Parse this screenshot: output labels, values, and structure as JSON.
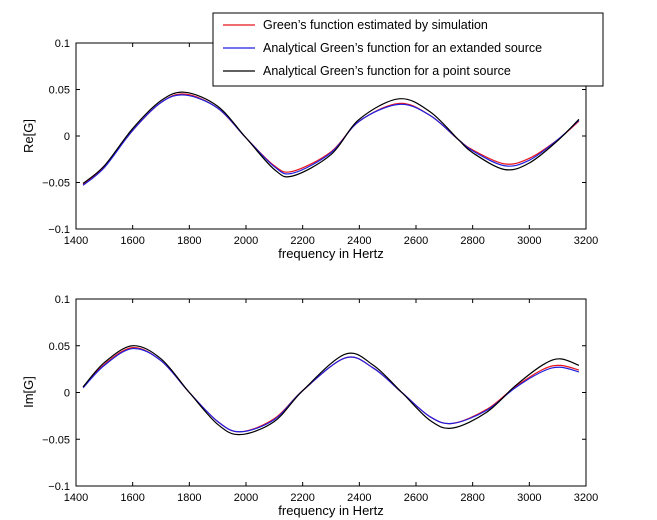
{
  "chart_data": [
    {
      "type": "line",
      "xlabel": "frequency in Hertz",
      "ylabel": "Re[G]",
      "xlim": [
        1400,
        3200
      ],
      "ylim": [
        -0.1,
        0.1
      ],
      "xticks": [
        "1400",
        "1600",
        "1800",
        "2000",
        "2200",
        "2400",
        "2600",
        "2800",
        "3000",
        "3200"
      ],
      "yticks": [
        "−0.1",
        "−0.05",
        "0",
        "0.05",
        "0.1"
      ],
      "grid": false,
      "legend_position": "top-right",
      "series": [
        {
          "name": "Green’s function estimated by simulation",
          "color": "#e8141c",
          "x": [
            1425,
            1500,
            1600,
            1700,
            1785,
            1900,
            2000,
            2100,
            2165,
            2300,
            2400,
            2540,
            2650,
            2750,
            2800,
            2912,
            3000,
            3100,
            3175
          ],
          "y": [
            -0.052,
            -0.033,
            0.006,
            0.036,
            0.045,
            0.03,
            -0.002,
            -0.032,
            -0.038,
            -0.017,
            0.016,
            0.035,
            0.022,
            -0.004,
            -0.015,
            -0.03,
            -0.024,
            -0.004,
            0.016
          ]
        },
        {
          "name": "Analytical Green’s function for an extanded source",
          "color": "#1f1fe0",
          "x": [
            1425,
            1500,
            1600,
            1700,
            1785,
            1900,
            2000,
            2100,
            2165,
            2300,
            2400,
            2540,
            2650,
            2750,
            2800,
            2912,
            3000,
            3100,
            3175
          ],
          "y": [
            -0.053,
            -0.034,
            0.006,
            0.036,
            0.044,
            0.03,
            -0.002,
            -0.033,
            -0.04,
            -0.018,
            0.016,
            0.034,
            0.022,
            -0.004,
            -0.016,
            -0.032,
            -0.026,
            -0.004,
            0.017
          ]
        },
        {
          "name": "Analytical Green’s function for a point source",
          "color": "#000000",
          "x": [
            1425,
            1500,
            1600,
            1700,
            1785,
            1900,
            2000,
            2100,
            2165,
            2300,
            2400,
            2540,
            2650,
            2750,
            2800,
            2912,
            3000,
            3100,
            3175
          ],
          "y": [
            -0.051,
            -0.032,
            0.008,
            0.038,
            0.047,
            0.032,
            -0.002,
            -0.036,
            -0.043,
            -0.02,
            0.018,
            0.04,
            0.026,
            -0.004,
            -0.018,
            -0.036,
            -0.029,
            -0.005,
            0.018
          ]
        }
      ]
    },
    {
      "type": "line",
      "xlabel": "frequency in Hertz",
      "ylabel": "Im[G]",
      "xlim": [
        1400,
        3200
      ],
      "ylim": [
        -0.1,
        0.1
      ],
      "xticks": [
        "1400",
        "1600",
        "1800",
        "2000",
        "2200",
        "2400",
        "2600",
        "2800",
        "3000",
        "3200"
      ],
      "yticks": [
        "−0.1",
        "−0.05",
        "0",
        "0.05",
        "0.1"
      ],
      "grid": false,
      "series": [
        {
          "name": "Green’s function estimated by simulation",
          "color": "#e8141c",
          "x": [
            1425,
            1500,
            1600,
            1700,
            1800,
            1900,
            1980,
            2100,
            2200,
            2350,
            2450,
            2550,
            2650,
            2730,
            2850,
            2950,
            3050,
            3110,
            3175
          ],
          "y": [
            0.006,
            0.03,
            0.048,
            0.034,
            0.0,
            -0.031,
            -0.042,
            -0.028,
            0.002,
            0.037,
            0.026,
            0.0,
            -0.026,
            -0.033,
            -0.018,
            0.006,
            0.025,
            0.029,
            0.024
          ]
        },
        {
          "name": "Analytical Green’s function for an extanded source",
          "color": "#1f1fe0",
          "x": [
            1425,
            1500,
            1600,
            1700,
            1800,
            1900,
            1980,
            2100,
            2200,
            2350,
            2450,
            2550,
            2650,
            2730,
            2850,
            2950,
            3050,
            3110,
            3175
          ],
          "y": [
            0.005,
            0.029,
            0.047,
            0.034,
            0.0,
            -0.031,
            -0.042,
            -0.029,
            0.002,
            0.037,
            0.026,
            0.0,
            -0.026,
            -0.033,
            -0.019,
            0.005,
            0.023,
            0.027,
            0.022
          ]
        },
        {
          "name": "Analytical Green’s function for a point source",
          "color": "#000000",
          "x": [
            1425,
            1500,
            1600,
            1700,
            1800,
            1900,
            1980,
            2100,
            2200,
            2350,
            2450,
            2550,
            2650,
            2730,
            2850,
            2950,
            3050,
            3110,
            3175
          ],
          "y": [
            0.006,
            0.032,
            0.05,
            0.036,
            0.0,
            -0.034,
            -0.045,
            -0.031,
            0.002,
            0.041,
            0.029,
            0.0,
            -0.03,
            -0.038,
            -0.021,
            0.007,
            0.03,
            0.036,
            0.029
          ]
        }
      ]
    }
  ]
}
